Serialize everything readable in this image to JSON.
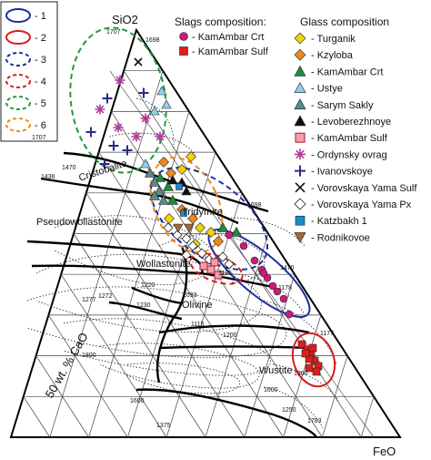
{
  "apex_labels": {
    "top": "SiO2",
    "right": "FeO"
  },
  "side_label": "50 wt. % CaO",
  "key_box": {
    "items": [
      {
        "label": "- 1",
        "color": "#1a2fa0",
        "dash": "solid"
      },
      {
        "label": "- 2",
        "color": "#d81c1c",
        "dash": "solid"
      },
      {
        "label": "- 3",
        "color": "#1a2fa0",
        "dash": "dashed"
      },
      {
        "label": "- 4",
        "color": "#d81c1c",
        "dash": "dashed"
      },
      {
        "label": "- 5",
        "color": "#1f9a3a",
        "dash": "dashed"
      },
      {
        "label": "- 6",
        "color": "#ef8a1a",
        "dash": "dashed"
      }
    ]
  },
  "legend_slags": {
    "title": "Slags composition:",
    "items": [
      {
        "label": "- KamAmbar Crt",
        "icon": "circle-icon",
        "color": "#cc1a7a"
      },
      {
        "label": "- KamAmbar Sulf",
        "icon": "square-icon",
        "color": "#e01c1c"
      }
    ]
  },
  "legend_glass": {
    "title": "Glass composition",
    "items": [
      {
        "label": "- Turganik",
        "icon": "diamond-icon",
        "color": "#f2d20a"
      },
      {
        "label": "- Kzyloba",
        "icon": "diamond-icon",
        "color": "#f08a1a"
      },
      {
        "label": "- KamAmbar Crt",
        "icon": "triangle-icon",
        "color": "#1e8c3a"
      },
      {
        "label": "- Ustye",
        "icon": "triangle-icon",
        "color": "#8fd0ea"
      },
      {
        "label": "- Sarym Sakly",
        "icon": "triangle-icon",
        "color": "#5a8a8a"
      },
      {
        "label": "- Levoberezhnoye",
        "icon": "triangle-icon",
        "color": "#111111"
      },
      {
        "label": "- KamAmbar Sulf",
        "icon": "square-outline-icon",
        "color": "#f2a0a8"
      },
      {
        "label": "- Ordynsky ovrag",
        "icon": "asterisk-icon",
        "color": "#b03a9a"
      },
      {
        "label": "- Ivanovskoye",
        "icon": "plus-icon",
        "color": "#2a2a8a"
      },
      {
        "label": "- Vorovskaya Yama Sulf",
        "icon": "cross-icon",
        "color": "#111111"
      },
      {
        "label": "- Vorovskaya Yama Px",
        "icon": "diamond-outline-icon",
        "color": "#ffffff"
      },
      {
        "label": "- Katzbakh 1",
        "icon": "square-icon",
        "color": "#1a8ac8"
      },
      {
        "label": "- Rodnikovoe",
        "icon": "triangle-down-icon",
        "color": "#a06a3a"
      }
    ]
  },
  "phase_labels": [
    "Cristobalite",
    "Tridymite",
    "Pseudowollastonite",
    "Wollastonite",
    "Olivine",
    "Wustite"
  ],
  "isotherm_labels": [
    "1707",
    "1698",
    "1707",
    "1470",
    "1436",
    "1698",
    "1470",
    "1178",
    "1105",
    "1093",
    "1115",
    "1177",
    "1220",
    "1272",
    "1277",
    "1230",
    "1800",
    "1200",
    "1300",
    "1600",
    "1375",
    "1290",
    "1783",
    "1600"
  ]
}
